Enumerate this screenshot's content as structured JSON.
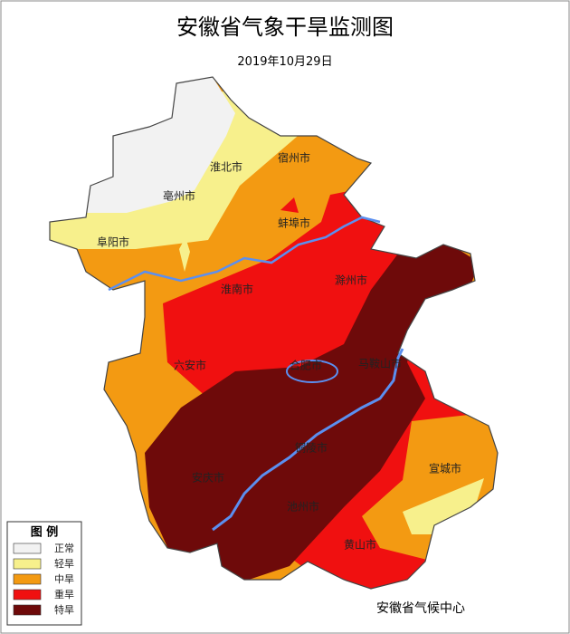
{
  "title": "安徽省气象干旱监测图",
  "date": "2019年10月29日",
  "cities": [
    "淮北市",
    "宿州市",
    "亳州市",
    "蚌埠市",
    "阜阳市",
    "淮南市",
    "滁州市",
    "六安市",
    "合肥市",
    "马鞍山市",
    "铜陵市",
    "安庆市",
    "池州市",
    "宣城市",
    "黄山市"
  ],
  "legend": {
    "title": "图  例",
    "items": [
      {
        "label": "正常",
        "color": "#f2f2f2"
      },
      {
        "label": "轻旱",
        "color": "#f7f08c"
      },
      {
        "label": "中旱",
        "color": "#f39a12"
      },
      {
        "label": "重旱",
        "color": "#f01010"
      },
      {
        "label": "特旱",
        "color": "#6e0a0a"
      }
    ]
  },
  "source": "安徽省气候中心"
}
